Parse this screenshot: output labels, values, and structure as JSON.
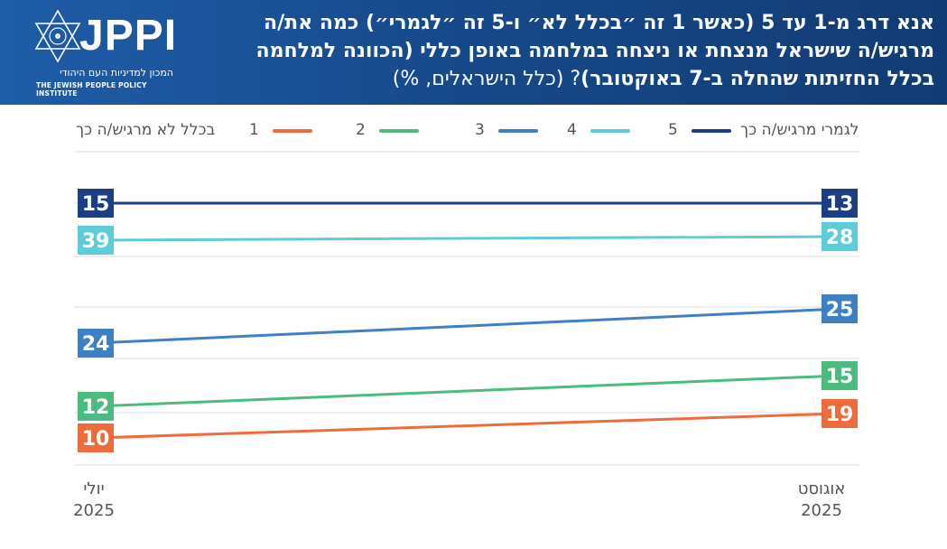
{
  "header": {
    "title_bold_1": "אנא דרג מ-1 עד 5  (כאשר 1 זה ״בכלל לא״ ו-5 זה ״לגמרי״)  כמה את/ה מרגיש/ה שישראל מנצחת או ניצחה במלחמה באופן כללי (הכוונה למלחמה בכלל החזיתות שהחלה ב-7 באוקטובר)",
    "title_normal": "? (כלל הישראלים, %)",
    "logo_word": "JPPI",
    "logo_hebrew": "המכון למדיניות העם היהודי",
    "logo_english": "THE JEWISH PEOPLE POLICY INSTITUTE"
  },
  "legend": {
    "left_label": "בכלל לא מרגיש/ה כך",
    "right_label": "לגמרי מרגיש/ה כך",
    "items": [
      {
        "num": "1",
        "color": "#ee6b3b"
      },
      {
        "num": "2",
        "color": "#4cbb7f"
      },
      {
        "num": "3",
        "color": "#3f7fc4"
      },
      {
        "num": "4",
        "color": "#5ecbd9"
      },
      {
        "num": "5",
        "color": "#1b3f82"
      }
    ]
  },
  "chart_data": {
    "type": "line",
    "categories": [
      "יולי 2025",
      "אוגוסט 2025"
    ],
    "series": [
      {
        "name": "5",
        "values": [
          15,
          13
        ],
        "color": "#1b3f82"
      },
      {
        "name": "4",
        "values": [
          39,
          28
        ],
        "color": "#5ecbd9"
      },
      {
        "name": "3",
        "values": [
          24,
          25
        ],
        "color": "#3f7fc4"
      },
      {
        "name": "2",
        "values": [
          12,
          15
        ],
        "color": "#4cbb7f"
      },
      {
        "name": "1",
        "values": [
          10,
          19
        ],
        "color": "#ee6b3b"
      }
    ],
    "grid": true,
    "legend_position": "top"
  },
  "xaxis": {
    "left_line1": "יולי",
    "left_line2": "2025",
    "right_line1": "אוגוסט",
    "right_line2": "2025"
  }
}
